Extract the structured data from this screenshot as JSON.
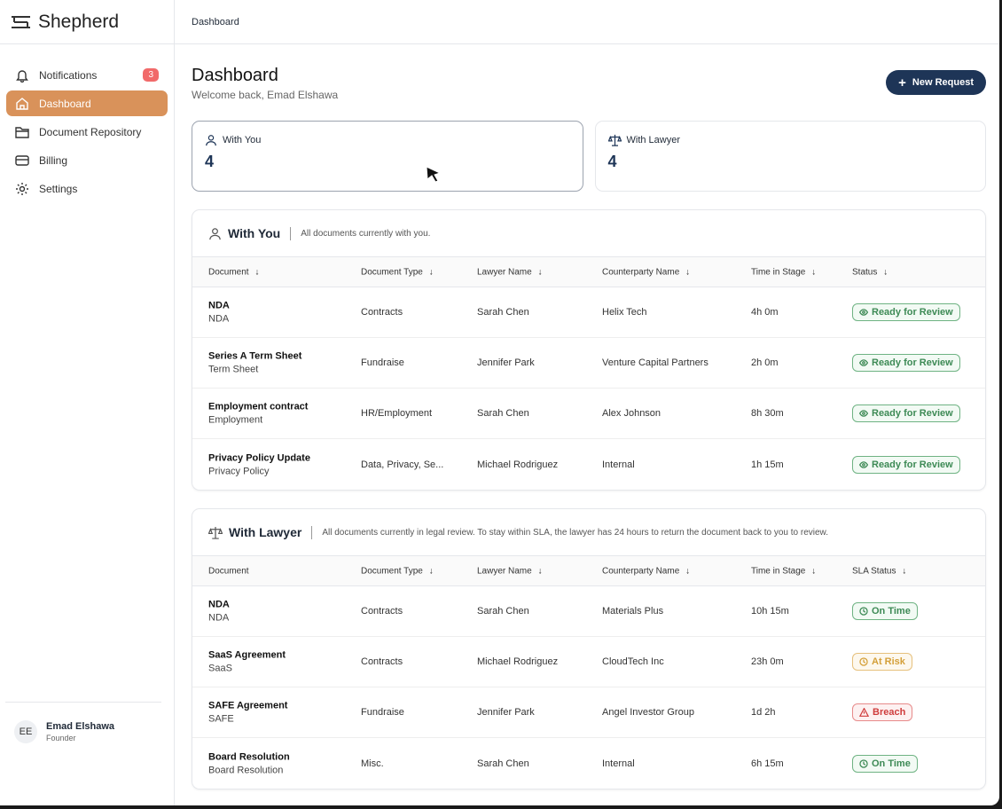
{
  "app": {
    "name": "Shepherd"
  },
  "sidebar": {
    "items": [
      {
        "label": "Notifications",
        "icon": "bell-icon",
        "badge": "3"
      },
      {
        "label": "Dashboard",
        "icon": "home-icon",
        "active": true
      },
      {
        "label": "Document Repository",
        "icon": "folder-icon"
      },
      {
        "label": "Billing",
        "icon": "credit-card-icon"
      },
      {
        "label": "Settings",
        "icon": "gear-icon"
      }
    ],
    "user": {
      "initials": "EE",
      "name": "Emad Elshawa",
      "role": "Founder"
    }
  },
  "topbar": {
    "breadcrumb": "Dashboard"
  },
  "main": {
    "title": "Dashboard",
    "welcome": "Welcome back, Emad Elshawa",
    "new_request": "New Request",
    "stats": [
      {
        "label": "With You",
        "value": "4"
      },
      {
        "label": "With Lawyer",
        "value": "4"
      }
    ]
  },
  "with_you": {
    "title": "With You",
    "desc": "All documents currently with you.",
    "columns": [
      "Document",
      "Document Type",
      "Lawyer Name",
      "Counterparty Name",
      "Time in Stage",
      "Status"
    ],
    "rows": [
      {
        "name": "NDA",
        "sub": "NDA",
        "type": "Contracts",
        "lawyer": "Sarah Chen",
        "counterparty": "Helix Tech",
        "time": "4h 0m",
        "status": "Ready for Review",
        "tone": "green",
        "icon": "eye"
      },
      {
        "name": "Series A Term Sheet",
        "sub": "Term Sheet",
        "type": "Fundraise",
        "lawyer": "Jennifer Park",
        "counterparty": "Venture Capital Partners",
        "time": "2h 0m",
        "status": "Ready for Review",
        "tone": "green",
        "icon": "eye"
      },
      {
        "name": "Employment contract",
        "sub": "Employment",
        "type": "HR/Employment",
        "lawyer": "Sarah Chen",
        "counterparty": "Alex Johnson",
        "time": "8h 30m",
        "status": "Ready for Review",
        "tone": "green",
        "icon": "eye"
      },
      {
        "name": "Privacy Policy Update",
        "sub": "Privacy Policy",
        "type": "Data, Privacy, Se...",
        "lawyer": "Michael Rodriguez",
        "counterparty": "Internal",
        "time": "1h 15m",
        "status": "Ready for Review",
        "tone": "green",
        "icon": "eye"
      }
    ]
  },
  "with_lawyer": {
    "title": "With Lawyer",
    "desc": "All documents currently in legal review. To stay within SLA, the lawyer has 24 hours to return the document back to you to review.",
    "columns": [
      "Document",
      "Document Type",
      "Lawyer Name",
      "Counterparty Name",
      "Time in Stage",
      "SLA Status"
    ],
    "rows": [
      {
        "name": "NDA",
        "sub": "NDA",
        "type": "Contracts",
        "lawyer": "Sarah Chen",
        "counterparty": "Materials Plus",
        "time": "10h 15m",
        "status": "On Time",
        "tone": "green",
        "icon": "clock"
      },
      {
        "name": "SaaS Agreement",
        "sub": "SaaS",
        "type": "Contracts",
        "lawyer": "Michael Rodriguez",
        "counterparty": "CloudTech Inc",
        "time": "23h 0m",
        "status": "At Risk",
        "tone": "amber",
        "icon": "clock"
      },
      {
        "name": "SAFE Agreement",
        "sub": "SAFE",
        "type": "Fundraise",
        "lawyer": "Jennifer Park",
        "counterparty": "Angel Investor Group",
        "time": "1d 2h",
        "status": "Breach",
        "tone": "red",
        "icon": "warning"
      },
      {
        "name": "Board Resolution",
        "sub": "Board Resolution",
        "type": "Misc.",
        "lawyer": "Sarah Chen",
        "counterparty": "Internal",
        "time": "6h 15m",
        "status": "On Time",
        "tone": "green",
        "icon": "clock"
      }
    ]
  }
}
